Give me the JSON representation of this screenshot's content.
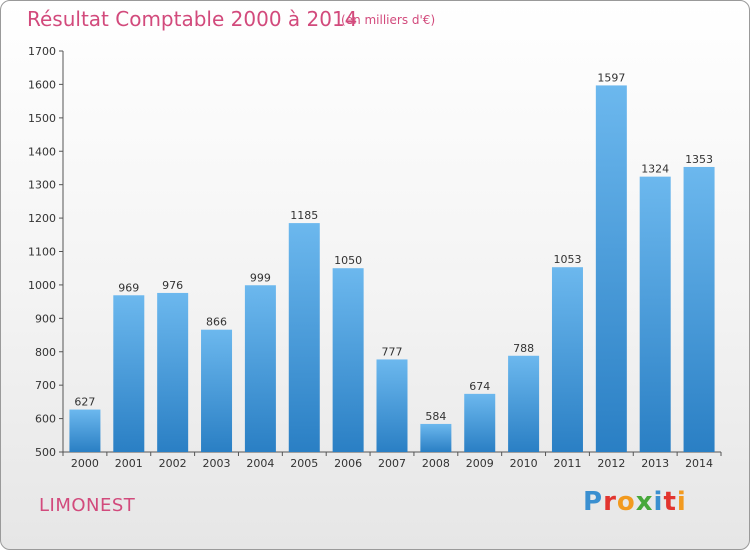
{
  "header": {
    "title": "Résultat Comptable 2000 à 2014",
    "subtitle": "(en milliers d'€)"
  },
  "footer": {
    "city": "LIMONEST",
    "logo_text": "Proxiti",
    "logo_letters": [
      {
        "ch": "P",
        "color": "#3a8fd0"
      },
      {
        "ch": "r",
        "color": "#e2352f"
      },
      {
        "ch": "o",
        "color": "#f29a1f"
      },
      {
        "ch": "x",
        "color": "#47a83a"
      },
      {
        "ch": "i",
        "color": "#3a8fd0"
      },
      {
        "ch": "t",
        "color": "#e2352f"
      },
      {
        "ch": "i",
        "color": "#f29a1f"
      }
    ]
  },
  "colors": {
    "bar_top": "#6cb8ee",
    "bar_bottom": "#2a7fc4",
    "accent": "#d24a7c"
  },
  "chart_data": {
    "type": "bar",
    "title": "Résultat Comptable 2000 à 2014",
    "subtitle": "(en milliers d'€)",
    "categories": [
      "2000",
      "2001",
      "2002",
      "2003",
      "2004",
      "2005",
      "2006",
      "2007",
      "2008",
      "2009",
      "2010",
      "2011",
      "2012",
      "2013",
      "2014"
    ],
    "values": [
      627,
      969,
      976,
      866,
      999,
      1185,
      1050,
      777,
      584,
      674,
      788,
      1053,
      1597,
      1324,
      1353
    ],
    "ylim": [
      500,
      1700
    ],
    "yticks": [
      500,
      600,
      700,
      800,
      900,
      1000,
      1100,
      1200,
      1300,
      1400,
      1500,
      1600,
      1700
    ],
    "grid": false,
    "data_labels": true
  }
}
